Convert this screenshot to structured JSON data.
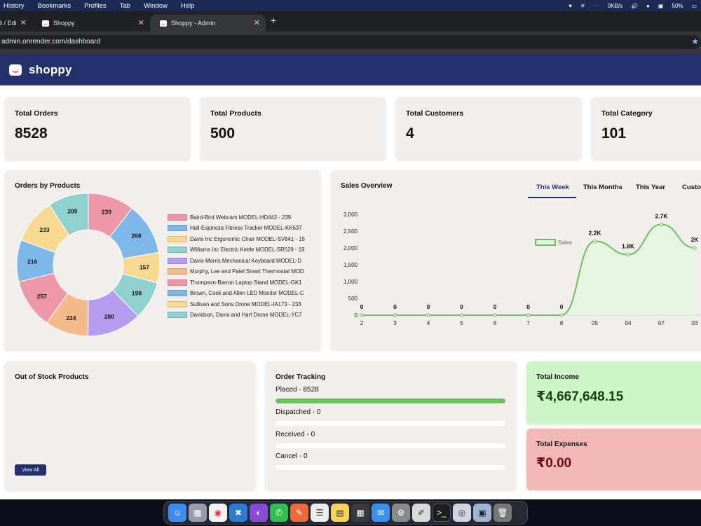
{
  "menubar": {
    "items": [
      "History",
      "Bookmarks",
      "Profiles",
      "Tab",
      "Window",
      "Help"
    ],
    "net_speed": "0KB/s",
    "battery": "50%"
  },
  "browser": {
    "tabs": [
      {
        "label": "3 / Edi"
      },
      {
        "label": "Shoppy"
      },
      {
        "label": "Shoppy - Admin"
      }
    ],
    "url": "admin.onrender.com/dashboard"
  },
  "header": {
    "logo": "shoppy"
  },
  "stats": [
    {
      "label": "Total Orders",
      "value": "8528"
    },
    {
      "label": "Total Products",
      "value": "500"
    },
    {
      "label": "Total Customers",
      "value": "4"
    },
    {
      "label": "Total Category",
      "value": "101"
    }
  ],
  "orders_by_products": {
    "title": "Orders by Products",
    "legend": [
      "Baird-Bird Webcam MODEL-HD442 - 239",
      "Hall-Espinoza Fitness Tracker MODEL-KK637",
      "Davis Inc Ergonomic Chair MODEL-SV841 - 15",
      "Williams Inc Electric Kettle MODEL-SR529 - 19",
      "Davis-Morris Mechanical Keyboard MODEL-D",
      "Murphy, Lee and Patel Smart Thermostat MOD",
      "Thompson-Barron Laptop Stand MODEL-GK1",
      "Brown, Cook and Allen LED Monitor MODEL-C",
      "Sullivan and Sons Drone MODEL-IA173 - 233",
      "Davidson, Davis and Hart Drone MODEL-YC7"
    ],
    "colors": [
      "#ee97a8",
      "#7db8e8",
      "#f7d98f",
      "#8fd1cf",
      "#b49cf0",
      "#f3bb8a",
      "#ee97a8",
      "#7db8e8",
      "#f7d98f",
      "#8fd1cf"
    ]
  },
  "sales_overview": {
    "title": "Sales Overview",
    "tabs": [
      "This Week",
      "This Months",
      "This Year",
      "Custom"
    ],
    "active_tab": "This Week",
    "legend_label": "Sales"
  },
  "chart_data": [
    {
      "type": "pie",
      "labels": [
        "239",
        "268",
        "157",
        "198",
        "280",
        "224",
        "257",
        "216",
        "233",
        "209"
      ],
      "values": [
        239,
        268,
        157,
        198,
        280,
        224,
        257,
        216,
        233,
        209
      ]
    },
    {
      "type": "area",
      "categories": [
        "2",
        "3",
        "4",
        "5",
        "6",
        "7",
        "8",
        "05",
        "04",
        "07",
        "03"
      ],
      "series": [
        {
          "name": "Sales",
          "values": [
            0,
            0,
            0,
            0,
            0,
            0,
            0,
            2200,
            1800,
            2700,
            2000
          ]
        }
      ],
      "data_labels": [
        "0",
        "0",
        "0",
        "0",
        "0",
        "0",
        "0",
        "2.2K",
        "1.8K",
        "2.7K",
        "2K"
      ],
      "yticks": [
        "0",
        "500",
        "1,000",
        "1,500",
        "2,000",
        "2,500",
        "3,000"
      ],
      "ylim": [
        0,
        3000
      ],
      "color": "#6dbf5f"
    }
  ],
  "out_of_stock": {
    "title": "Out of Stock Products",
    "view_all": "View All"
  },
  "order_tracking": {
    "title": "Order Tracking",
    "items": [
      {
        "label": "Placed - 8528",
        "fraction": 1.0
      },
      {
        "label": "Dispatched - 0",
        "fraction": 0
      },
      {
        "label": "Received - 0",
        "fraction": 0
      },
      {
        "label": "Cancel - 0",
        "fraction": 0
      }
    ]
  },
  "income": {
    "label": "Total Income",
    "value": "₹4,667,648.15",
    "bg": "#cdf5c7",
    "color": "#1d3f15"
  },
  "expenses": {
    "label": "Total Expenses",
    "value": "₹0.00",
    "bg": "#f1b8b6",
    "color": "#6b0d0d"
  }
}
